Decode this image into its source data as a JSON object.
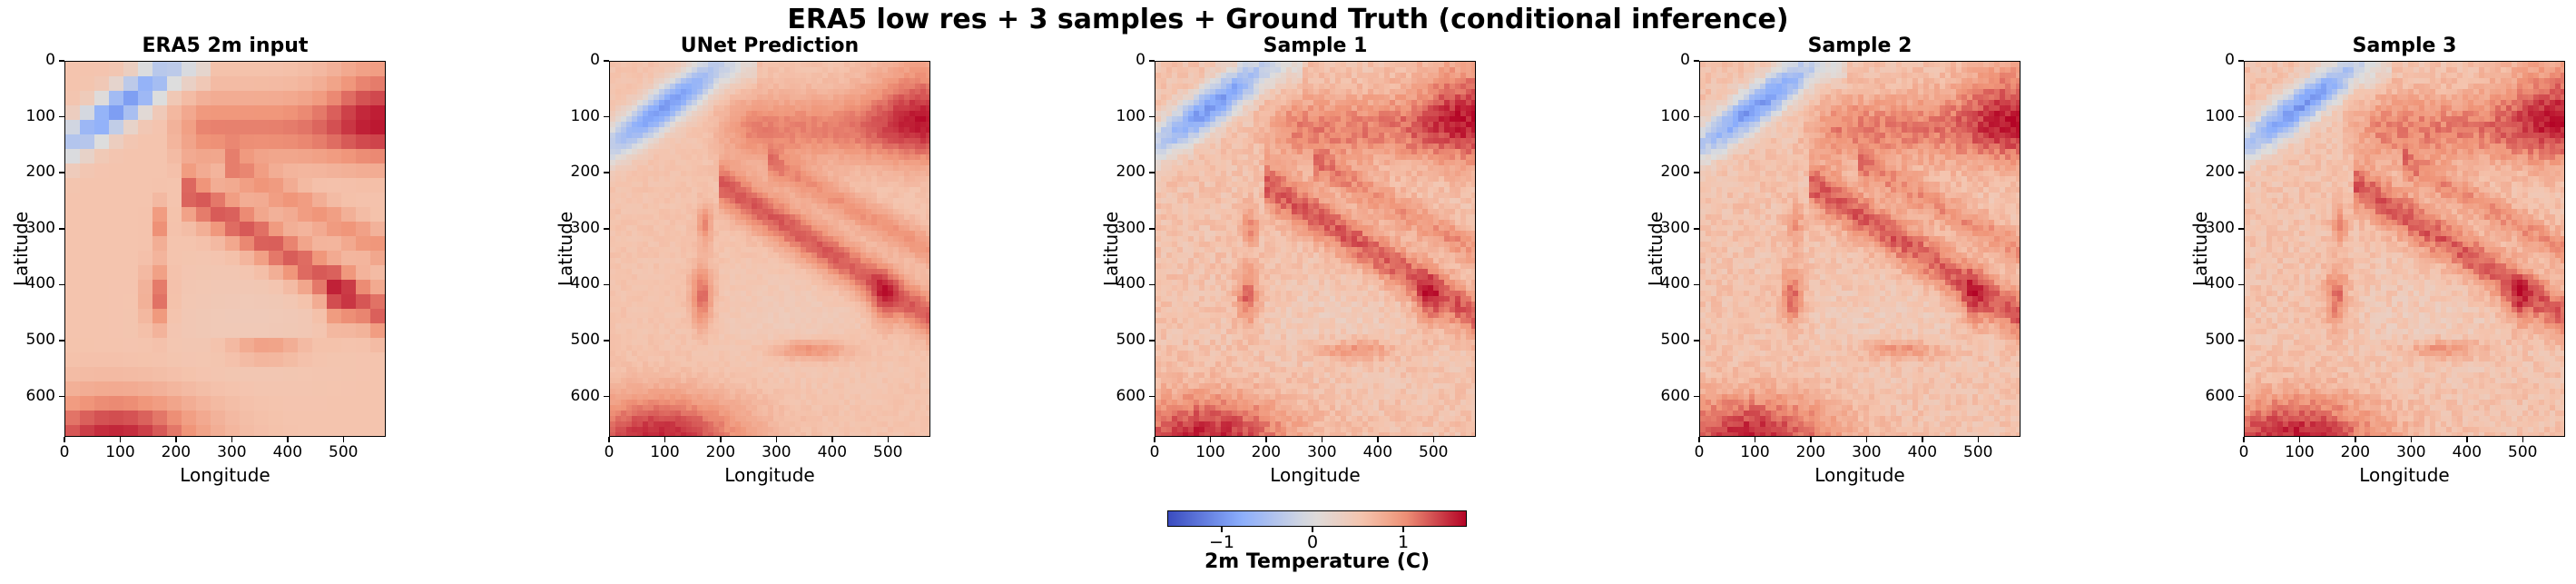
{
  "suptitle": "ERA5 low res + 3 samples + Ground Truth (conditional inference)",
  "colorbar": {
    "label": "2m Temperature (C)",
    "ticks": [
      "−1",
      "0",
      "1"
    ],
    "tick_values": [
      -1,
      0,
      1
    ],
    "range": [
      -1.6,
      1.7
    ],
    "colormap": "coolwarm",
    "colors": [
      "#3b4cc0",
      "#b3cdfb",
      "#dddddd",
      "#f6b59a",
      "#b40426"
    ]
  },
  "chart_data": [
    {
      "type": "heatmap",
      "title": "ERA5 2m input",
      "xlabel": "Longitude",
      "ylabel": "Latitude",
      "xticks": [
        "0",
        "100",
        "200",
        "300",
        "400",
        "500"
      ],
      "yticks": [
        "0",
        "100",
        "200",
        "300",
        "400",
        "500",
        "600"
      ],
      "xlim": [
        0,
        576
      ],
      "ylim": [
        672,
        0
      ],
      "resolution": "low"
    },
    {
      "type": "heatmap",
      "title": "UNet Prediction",
      "xlabel": "Longitude",
      "ylabel": "Latitude",
      "xticks": [
        "0",
        "100",
        "200",
        "300",
        "400",
        "500"
      ],
      "yticks": [
        "0",
        "100",
        "200",
        "300",
        "400",
        "500",
        "600"
      ],
      "xlim": [
        0,
        576
      ],
      "ylim": [
        672,
        0
      ],
      "resolution": "high-smooth"
    },
    {
      "type": "heatmap",
      "title": "Sample 1",
      "xlabel": "Longitude",
      "ylabel": "Latitude",
      "xticks": [
        "0",
        "100",
        "200",
        "300",
        "400",
        "500"
      ],
      "yticks": [
        "0",
        "100",
        "200",
        "300",
        "400",
        "500",
        "600"
      ],
      "xlim": [
        0,
        576
      ],
      "ylim": [
        672,
        0
      ],
      "resolution": "high"
    },
    {
      "type": "heatmap",
      "title": "Sample 2",
      "xlabel": "Longitude",
      "ylabel": "Latitude",
      "xticks": [
        "0",
        "100",
        "200",
        "300",
        "400",
        "500"
      ],
      "yticks": [
        "0",
        "100",
        "200",
        "300",
        "400",
        "500",
        "600"
      ],
      "xlim": [
        0,
        576
      ],
      "ylim": [
        672,
        0
      ],
      "resolution": "high"
    },
    {
      "type": "heatmap",
      "title": "Sample 3",
      "xlabel": "Longitude",
      "ylabel": "Latitude",
      "xticks": [
        "0",
        "100",
        "200",
        "300",
        "400",
        "500"
      ],
      "yticks": [
        "0",
        "100",
        "200",
        "300",
        "400",
        "500",
        "600"
      ],
      "xlim": [
        0,
        576
      ],
      "ylim": [
        672,
        0
      ],
      "resolution": "high"
    }
  ]
}
